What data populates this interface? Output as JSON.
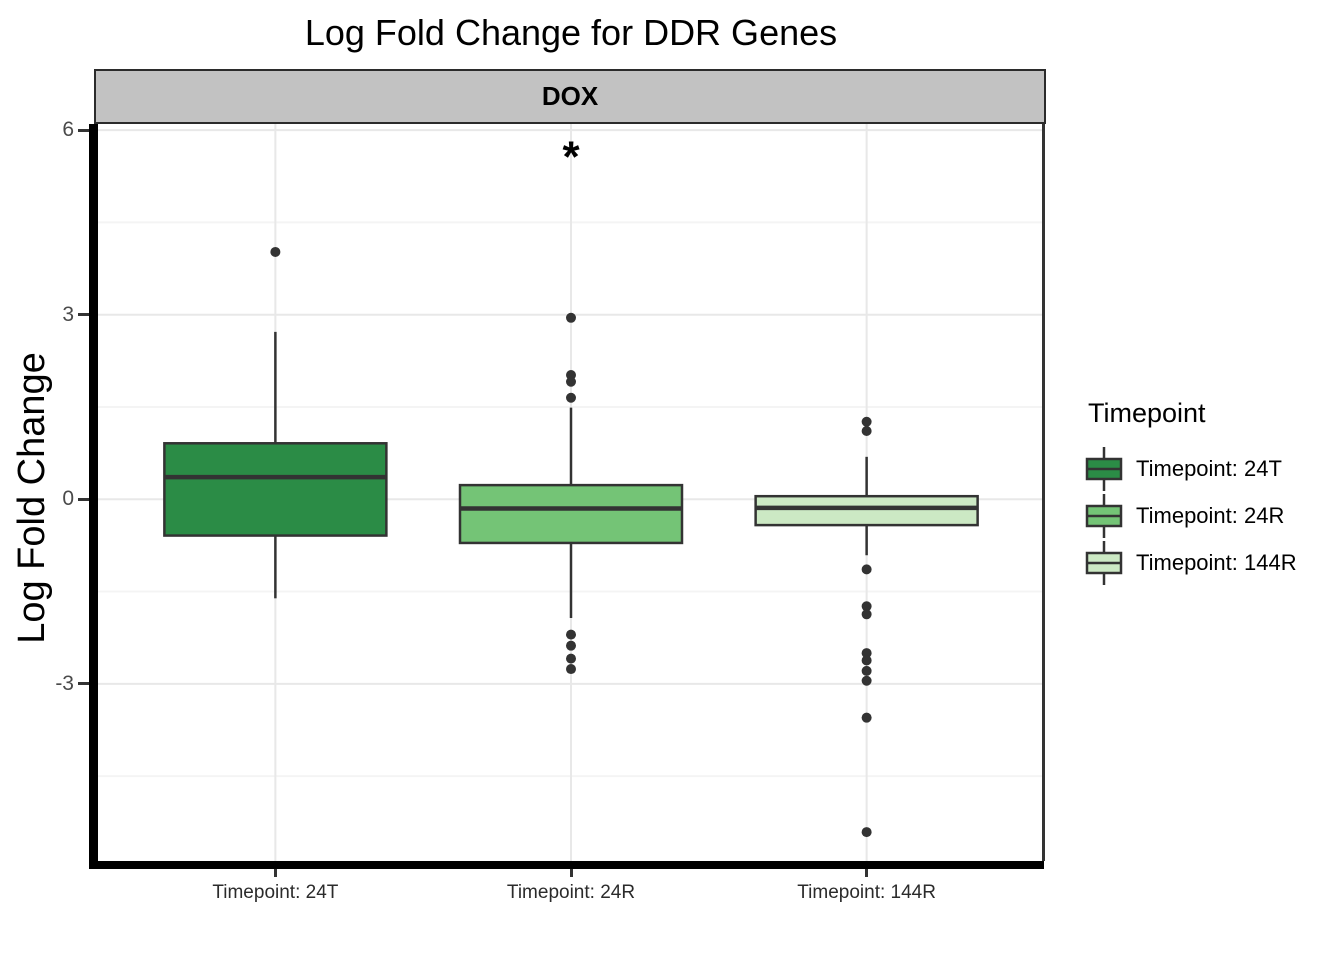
{
  "title": "Log Fold Change for DDR Genes",
  "facet": {
    "label": "DOX",
    "fill": "#C2C2C2",
    "border": "#2B2B2B"
  },
  "y_axis": {
    "title": "Log Fold Change"
  },
  "legend": {
    "title": "Timepoint",
    "entries": [
      {
        "label": "Timepoint: 24T",
        "color": "#2B8C46"
      },
      {
        "label": "Timepoint: 24R",
        "color": "#74C476"
      },
      {
        "label": "Timepoint: 144R",
        "color": "#CCE9C4"
      }
    ]
  },
  "annotation": {
    "text": "*",
    "category_index": 1,
    "value": 5.7
  },
  "colors": {
    "box_stroke": "#333333",
    "outlier": "#333333",
    "grid_major": "#E8E8E8",
    "grid_minor": "#F4F4F4",
    "axis_line": "#000000"
  },
  "chart_data": {
    "type": "boxplot",
    "title": "Log Fold Change for DDR Genes",
    "facet_label": "DOX",
    "xlabel": "",
    "ylabel": "Log Fold Change",
    "categories": [
      "Timepoint: 24T",
      "Timepoint: 24R",
      "Timepoint: 144R"
    ],
    "ylim": [
      -5.88,
      6.1
    ],
    "yticks_major": [
      6,
      3,
      0,
      -3
    ],
    "yticks_minor": [
      4.5,
      1.5,
      -1.5,
      -4.5
    ],
    "grid": "on",
    "legend_position": "right",
    "series": [
      {
        "name": "Timepoint: 24T",
        "color": "#2B8C46",
        "whisker_low": -1.61,
        "q1": -0.59,
        "median": 0.36,
        "q3": 0.91,
        "whisker_high": 2.72,
        "outliers": [
          4.02
        ]
      },
      {
        "name": "Timepoint: 24R",
        "color": "#74C476",
        "whisker_low": -1.93,
        "q1": -0.71,
        "median": -0.15,
        "q3": 0.23,
        "whisker_high": 1.49,
        "outliers": [
          2.95,
          2.02,
          1.91,
          1.65,
          -2.2,
          -2.38,
          -2.59,
          -2.76
        ]
      },
      {
        "name": "Timepoint: 144R",
        "color": "#CCE9C4",
        "whisker_low": -0.91,
        "q1": -0.42,
        "median": -0.14,
        "q3": 0.05,
        "whisker_high": 0.69,
        "outliers": [
          1.26,
          1.11,
          -1.14,
          -1.74,
          -1.87,
          -2.5,
          -2.62,
          -2.79,
          -2.95,
          -3.55,
          -5.41
        ]
      }
    ],
    "significance": {
      "symbol": "*",
      "category": "Timepoint: 24R"
    }
  }
}
